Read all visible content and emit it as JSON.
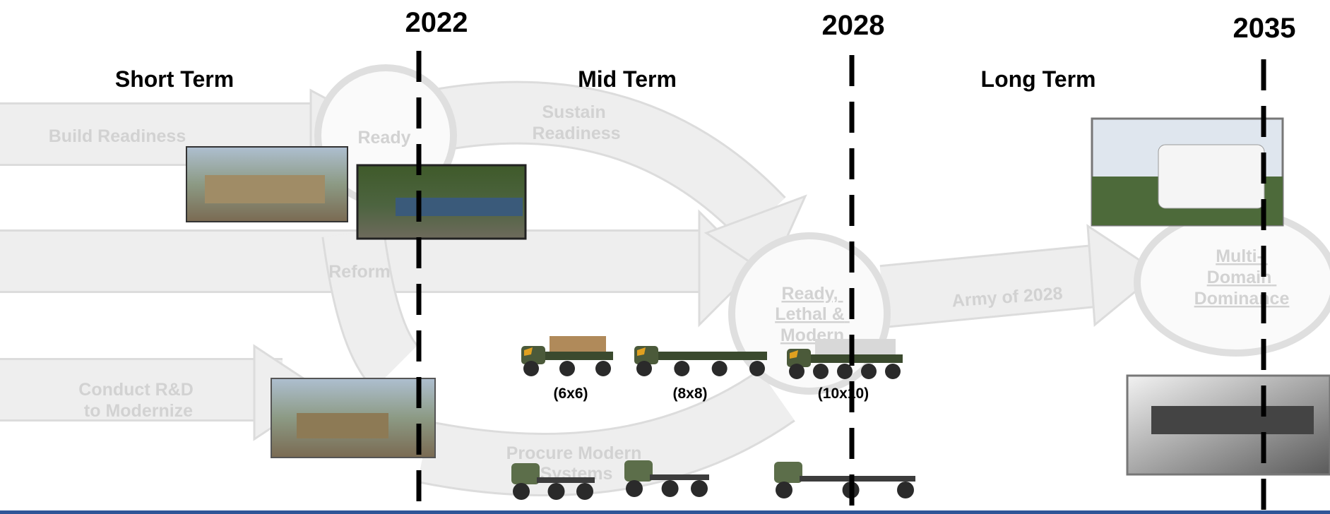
{
  "timeline": {
    "milestones": [
      "2022",
      "2028",
      "2035"
    ],
    "phases": [
      "Short Term",
      "Mid Term",
      "Long Term"
    ],
    "flow_labels": {
      "build_readiness": "Build Readiness",
      "ready": "Ready",
      "sustain_readiness": [
        "Sustain",
        "Readiness"
      ],
      "reform": "Reform",
      "conduct_rd": [
        "Conduct R&D",
        "to Modernize"
      ],
      "procure": [
        "Procure Modern",
        "Systems"
      ],
      "ready_lethal_modern": [
        "Ready,",
        "Lethal &",
        "Modern"
      ],
      "army_of_2028": "Army of 2028",
      "multi_domain": [
        "Multi-",
        "Domain",
        "Dominance"
      ]
    },
    "vehicle_labels": [
      "(6x6)",
      "(8x8)",
      "(10x10)"
    ]
  }
}
